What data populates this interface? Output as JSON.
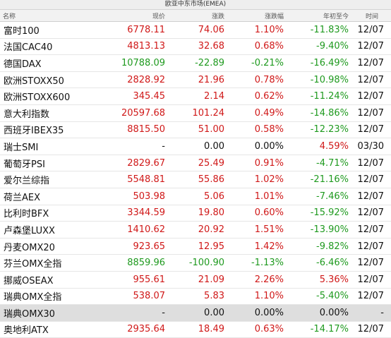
{
  "window_title": "欧亚中东市场(EMEA)",
  "columns": {
    "name": "名称",
    "price": "现价",
    "change": "涨跌",
    "change_pct": "涨跌幅",
    "ytd": "年初至今",
    "time": "时间"
  },
  "colors": {
    "up": "#d01818",
    "down": "#1f9a1f",
    "flat": "#111111",
    "highlight_row": "#dedede"
  },
  "rows": [
    {
      "name": "富时100",
      "price": "6778.11",
      "change": "74.06",
      "change_pct": "1.10%",
      "ytd": "-11.83%",
      "time": "12/07",
      "dir": "up",
      "ytd_dir": "down"
    },
    {
      "name": "法国CAC40",
      "price": "4813.13",
      "change": "32.68",
      "change_pct": "0.68%",
      "ytd": "-9.40%",
      "time": "12/07",
      "dir": "up",
      "ytd_dir": "down"
    },
    {
      "name": "德国DAX",
      "price": "10788.09",
      "change": "-22.89",
      "change_pct": "-0.21%",
      "ytd": "-16.49%",
      "time": "12/07",
      "dir": "down",
      "ytd_dir": "down"
    },
    {
      "name": "欧洲STOXX50",
      "price": "2828.92",
      "change": "21.96",
      "change_pct": "0.78%",
      "ytd": "-10.98%",
      "time": "12/07",
      "dir": "up",
      "ytd_dir": "down"
    },
    {
      "name": "欧洲STOXX600",
      "price": "345.45",
      "change": "2.14",
      "change_pct": "0.62%",
      "ytd": "-11.24%",
      "time": "12/07",
      "dir": "up",
      "ytd_dir": "down"
    },
    {
      "name": "意大利指数",
      "price": "20597.68",
      "change": "101.24",
      "change_pct": "0.49%",
      "ytd": "-14.86%",
      "time": "12/07",
      "dir": "up",
      "ytd_dir": "down"
    },
    {
      "name": "西班牙IBEX35",
      "price": "8815.50",
      "change": "51.00",
      "change_pct": "0.58%",
      "ytd": "-12.23%",
      "time": "12/07",
      "dir": "up",
      "ytd_dir": "down"
    },
    {
      "name": "瑞士SMI",
      "price": "-",
      "change": "0.00",
      "change_pct": "0.00%",
      "ytd": "4.59%",
      "time": "03/30",
      "dir": "flat",
      "ytd_dir": "up"
    },
    {
      "name": "葡萄牙PSI",
      "price": "2829.67",
      "change": "25.49",
      "change_pct": "0.91%",
      "ytd": "-4.71%",
      "time": "12/07",
      "dir": "up",
      "ytd_dir": "down"
    },
    {
      "name": "爱尔兰综指",
      "price": "5548.81",
      "change": "55.86",
      "change_pct": "1.02%",
      "ytd": "-21.16%",
      "time": "12/07",
      "dir": "up",
      "ytd_dir": "down"
    },
    {
      "name": "荷兰AEX",
      "price": "503.98",
      "change": "5.06",
      "change_pct": "1.01%",
      "ytd": "-7.46%",
      "time": "12/07",
      "dir": "up",
      "ytd_dir": "down"
    },
    {
      "name": "比利时BFX",
      "price": "3344.59",
      "change": "19.80",
      "change_pct": "0.60%",
      "ytd": "-15.92%",
      "time": "12/07",
      "dir": "up",
      "ytd_dir": "down"
    },
    {
      "name": "卢森堡LUXX",
      "price": "1410.62",
      "change": "20.92",
      "change_pct": "1.51%",
      "ytd": "-13.90%",
      "time": "12/07",
      "dir": "up",
      "ytd_dir": "down"
    },
    {
      "name": "丹麦OMX20",
      "price": "923.65",
      "change": "12.95",
      "change_pct": "1.42%",
      "ytd": "-9.82%",
      "time": "12/07",
      "dir": "up",
      "ytd_dir": "down"
    },
    {
      "name": "芬兰OMX全指",
      "price": "8859.96",
      "change": "-100.90",
      "change_pct": "-1.13%",
      "ytd": "-6.46%",
      "time": "12/07",
      "dir": "down",
      "ytd_dir": "down"
    },
    {
      "name": "挪威OSEAX",
      "price": "955.61",
      "change": "21.09",
      "change_pct": "2.26%",
      "ytd": "5.36%",
      "time": "12/07",
      "dir": "up",
      "ytd_dir": "up"
    },
    {
      "name": "瑞典OMX全指",
      "price": "538.07",
      "change": "5.83",
      "change_pct": "1.10%",
      "ytd": "-5.40%",
      "time": "12/07",
      "dir": "up",
      "ytd_dir": "down"
    },
    {
      "name": "瑞典OMX30",
      "price": "-",
      "change": "0.00",
      "change_pct": "0.00%",
      "ytd": "0.00%",
      "time": "-",
      "dir": "flat",
      "ytd_dir": "flat",
      "highlight": true
    },
    {
      "name": "奥地利ATX",
      "price": "2935.64",
      "change": "18.49",
      "change_pct": "0.63%",
      "ytd": "-14.17%",
      "time": "12/07",
      "dir": "up",
      "ytd_dir": "down"
    }
  ]
}
